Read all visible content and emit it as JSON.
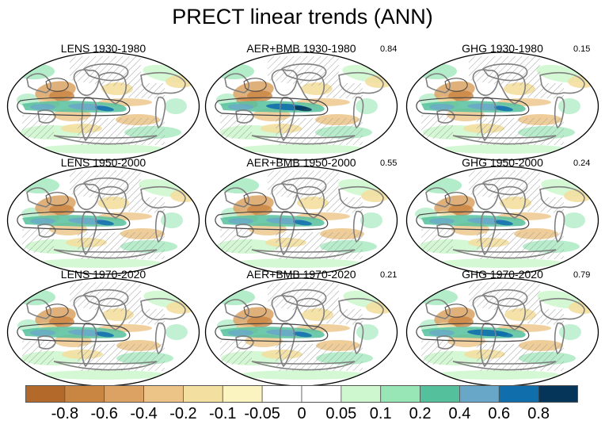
{
  "title": "PRECT linear trends (ANN)",
  "panels": [
    {
      "title": "LENS 1930-1980",
      "corr": ""
    },
    {
      "title": "AER+BMB 1930-1980",
      "corr": "0.84"
    },
    {
      "title": "GHG 1930-1980",
      "corr": "0.15"
    },
    {
      "title": "LENS 1950-2000",
      "corr": ""
    },
    {
      "title": "AER+BMB 1950-2000",
      "corr": "0.55"
    },
    {
      "title": "GHG 1950-2000",
      "corr": "0.24"
    },
    {
      "title": "LENS 1970-2020",
      "corr": ""
    },
    {
      "title": "AER+BMB 1970-2020",
      "corr": "0.21"
    },
    {
      "title": "GHG 1970-2020",
      "corr": "0.79"
    }
  ],
  "colorbar": {
    "colors": [
      "#b3692a",
      "#c98542",
      "#dba263",
      "#ecc487",
      "#f3dfa0",
      "#fbf3c0",
      "#ffffff",
      "#ffffff",
      "#cff7cf",
      "#98e6b5",
      "#55c19c",
      "#69a7c8",
      "#0f6eab",
      "#053659"
    ],
    "labels": [
      "-0.8",
      "-0.6",
      "-0.4",
      "-0.2",
      "-0.1",
      "-0.05",
      "0",
      "0.05",
      "0.1",
      "0.2",
      "0.4",
      "0.6",
      "0.8"
    ]
  }
}
